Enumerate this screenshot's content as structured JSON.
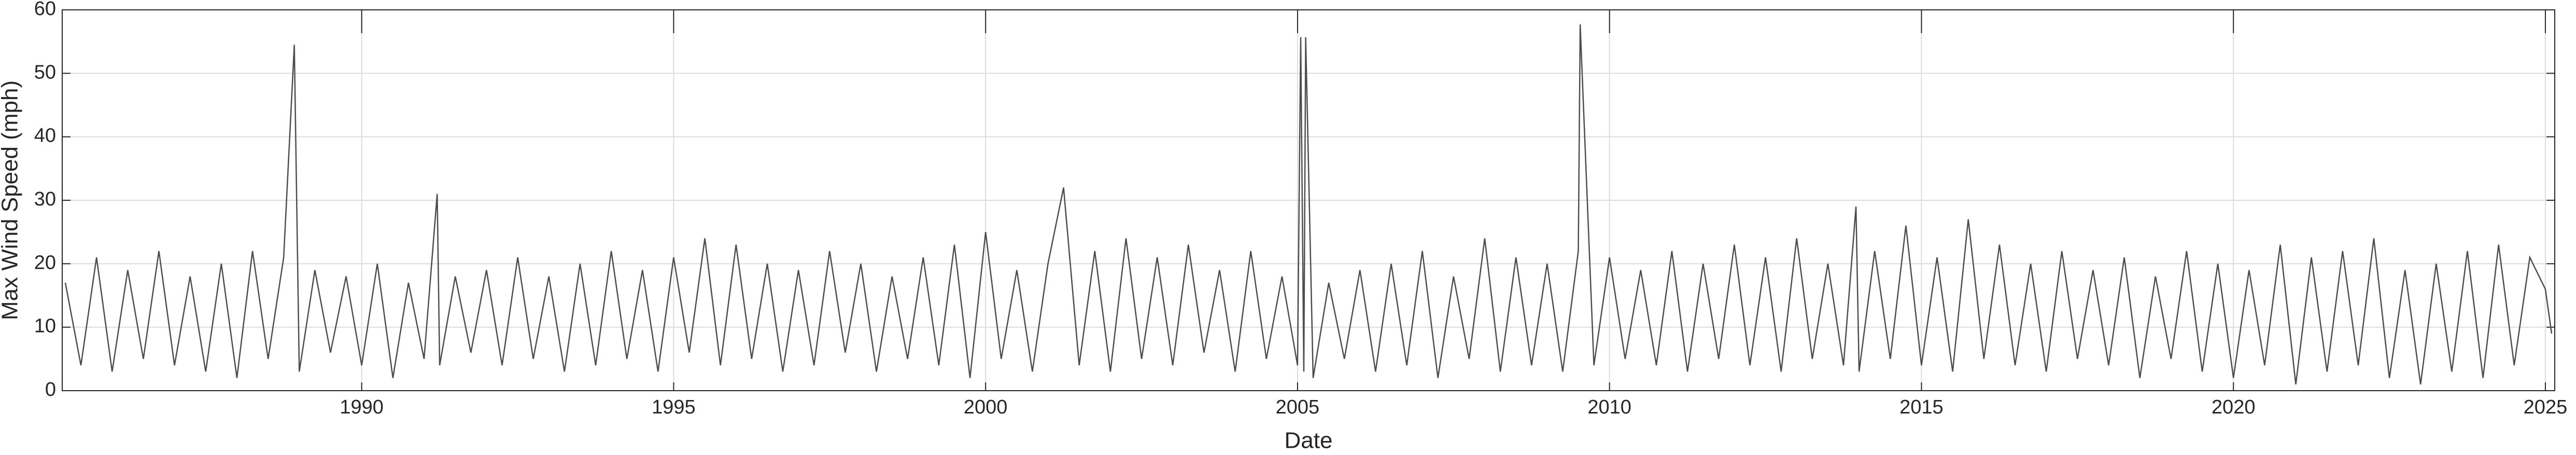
{
  "chart_data": {
    "type": "line",
    "x_label": "Date",
    "y_label": "Max Wind Speed (mph)",
    "x": [
      1985.25,
      1985.5,
      1985.75,
      1986,
      1986.25,
      1986.5,
      1986.75,
      1987,
      1987.25,
      1987.5,
      1987.75,
      1988,
      1988.25,
      1988.5,
      1988.75,
      1988.92,
      1989,
      1989.25,
      1989.5,
      1989.75,
      1990,
      1990.25,
      1990.5,
      1990.75,
      1991,
      1991.21,
      1991.25,
      1991.5,
      1991.75,
      1992,
      1992.25,
      1992.5,
      1992.75,
      1993,
      1993.25,
      1993.5,
      1993.75,
      1994,
      1994.25,
      1994.5,
      1994.75,
      1995,
      1995.25,
      1995.5,
      1995.75,
      1996,
      1996.25,
      1996.5,
      1996.75,
      1997,
      1997.25,
      1997.5,
      1997.75,
      1998,
      1998.25,
      1998.5,
      1998.75,
      1999,
      1999.25,
      1999.5,
      1999.75,
      2000,
      2000.25,
      2000.5,
      2000.75,
      2001,
      2001.25,
      2001.5,
      2001.75,
      2002,
      2002.25,
      2002.5,
      2002.75,
      2003,
      2003.25,
      2003.5,
      2003.75,
      2004,
      2004.25,
      2004.5,
      2004.75,
      2005,
      2005.05,
      2005.1,
      2005.13,
      2005.25,
      2005.5,
      2005.75,
      2006,
      2006.25,
      2006.5,
      2006.75,
      2007,
      2007.25,
      2007.5,
      2007.75,
      2008,
      2008.25,
      2008.5,
      2008.75,
      2009,
      2009.25,
      2009.5,
      2009.53,
      2009.75,
      2010,
      2010.25,
      2010.5,
      2010.75,
      2011,
      2011.25,
      2011.5,
      2011.75,
      2012,
      2012.25,
      2012.5,
      2012.75,
      2013,
      2013.25,
      2013.5,
      2013.75,
      2013.95,
      2014,
      2014.25,
      2014.5,
      2014.75,
      2015,
      2015.25,
      2015.5,
      2015.75,
      2016,
      2016.25,
      2016.5,
      2016.75,
      2017,
      2017.25,
      2017.5,
      2017.75,
      2018,
      2018.25,
      2018.5,
      2018.75,
      2019,
      2019.25,
      2019.5,
      2019.75,
      2020,
      2020.25,
      2020.5,
      2020.75,
      2021,
      2021.25,
      2021.5,
      2021.75,
      2022,
      2022.25,
      2022.5,
      2022.75,
      2023,
      2023.25,
      2023.5,
      2023.75,
      2024,
      2024.25,
      2024.5,
      2024.75,
      2025,
      2025.1
    ],
    "values": [
      17,
      4,
      21,
      3,
      19,
      5,
      22,
      4,
      18,
      3,
      20,
      2,
      22,
      5,
      21,
      54.5,
      3,
      19,
      6,
      18,
      4,
      20,
      2,
      17,
      5,
      31,
      4,
      18,
      6,
      19,
      4,
      21,
      5,
      18,
      3,
      20,
      4,
      22,
      5,
      19,
      3,
      21,
      6,
      24,
      4,
      23,
      5,
      20,
      3,
      19,
      4,
      22,
      6,
      20,
      3,
      18,
      5,
      21,
      4,
      23,
      2,
      25,
      5,
      19,
      3,
      20,
      32,
      4,
      22,
      3,
      24,
      5,
      21,
      4,
      23,
      6,
      19,
      3,
      22,
      5,
      18,
      4,
      55.7,
      3,
      55.7,
      2,
      17,
      5,
      19,
      3,
      20,
      4,
      22,
      2,
      18,
      5,
      24,
      3,
      21,
      4,
      20,
      3,
      22,
      57.7,
      4,
      21,
      5,
      19,
      4,
      22,
      3,
      20,
      5,
      23,
      4,
      21,
      3,
      24,
      5,
      20,
      4,
      29,
      3,
      22,
      5,
      26,
      4,
      21,
      3,
      27,
      5,
      23,
      4,
      20,
      3,
      22,
      5,
      19,
      4,
      21,
      2,
      18,
      5,
      22,
      3,
      20,
      2,
      19,
      4,
      23,
      1,
      21,
      3,
      22,
      4,
      24,
      2,
      19,
      1,
      20,
      3,
      22,
      2,
      23,
      4,
      21,
      16,
      9
    ],
    "color": "#4d4d4d",
    "xlim": [
      1985.2,
      2025.15
    ],
    "xticks": [
      1990,
      1995,
      2000,
      2005,
      2010,
      2015,
      2020,
      2025
    ],
    "ylim": [
      0,
      60
    ],
    "yticks": [
      0,
      10,
      20,
      30,
      40,
      50,
      60
    ],
    "grid": true
  }
}
